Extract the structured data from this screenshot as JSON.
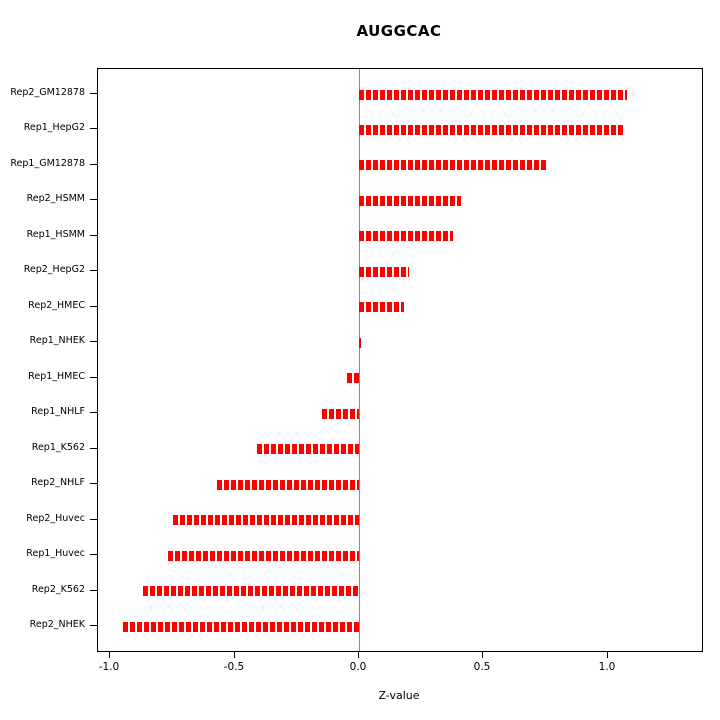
{
  "chart_data": {
    "type": "bar",
    "orientation": "horizontal",
    "title": "AUGGCAC",
    "xlabel": "Z-value",
    "categories": [
      "Rep2_GM12878",
      "Rep1_HepG2",
      "Rep1_GM12878",
      "Rep2_HSMM",
      "Rep1_HSMM",
      "Rep2_HepG2",
      "Rep2_HMEC",
      "Rep1_NHEK",
      "Rep1_HMEC",
      "Rep1_NHLF",
      "Rep1_K562",
      "Rep2_NHLF",
      "Rep2_Huvec",
      "Rep1_Huvec",
      "Rep2_K562",
      "Rep2_NHEK"
    ],
    "values": [
      1.08,
      1.07,
      0.76,
      0.41,
      0.38,
      0.2,
      0.18,
      0.01,
      -0.05,
      -0.15,
      -0.41,
      -0.57,
      -0.75,
      -0.77,
      -0.87,
      -0.95
    ],
    "xlim": [
      -1.05,
      1.38
    ],
    "xticks": [
      -1.0,
      -0.5,
      0.0,
      0.5,
      1.0
    ],
    "xtick_labels": [
      "-1.0",
      "-0.5",
      "0.0",
      "0.5",
      "1.0"
    ],
    "grid": false,
    "legend": "none",
    "bar_color": "#ff0000",
    "bar_style": "dashed",
    "zero_line_color": "#00ee00",
    "axis_color": "#000000"
  }
}
